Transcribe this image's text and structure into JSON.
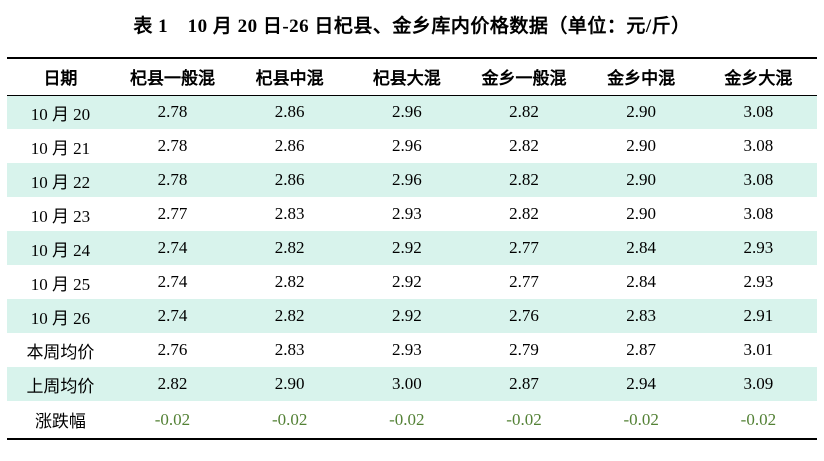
{
  "title": "表 1　10 月 20 日-26 日杞县、金乡库内价格数据（单位：元/斤）",
  "table": {
    "columns": [
      "日期",
      "杞县一般混",
      "杞县中混",
      "杞县大混",
      "金乡一般混",
      "金乡中混",
      "金乡大混"
    ],
    "rows": [
      {
        "label": "10 月 20",
        "values": [
          "2.78",
          "2.86",
          "2.96",
          "2.82",
          "2.90",
          "3.08"
        ],
        "is_change": false
      },
      {
        "label": "10 月 21",
        "values": [
          "2.78",
          "2.86",
          "2.96",
          "2.82",
          "2.90",
          "3.08"
        ],
        "is_change": false
      },
      {
        "label": "10 月 22",
        "values": [
          "2.78",
          "2.86",
          "2.96",
          "2.82",
          "2.90",
          "3.08"
        ],
        "is_change": false
      },
      {
        "label": "10 月 23",
        "values": [
          "2.77",
          "2.83",
          "2.93",
          "2.82",
          "2.90",
          "3.08"
        ],
        "is_change": false
      },
      {
        "label": "10 月 24",
        "values": [
          "2.74",
          "2.82",
          "2.92",
          "2.77",
          "2.84",
          "2.93"
        ],
        "is_change": false
      },
      {
        "label": "10 月 25",
        "values": [
          "2.74",
          "2.82",
          "2.92",
          "2.77",
          "2.84",
          "2.93"
        ],
        "is_change": false
      },
      {
        "label": "10 月 26",
        "values": [
          "2.74",
          "2.82",
          "2.92",
          "2.76",
          "2.83",
          "2.91"
        ],
        "is_change": false
      },
      {
        "label": "本周均价",
        "values": [
          "2.76",
          "2.83",
          "2.93",
          "2.79",
          "2.87",
          "3.01"
        ],
        "is_change": false
      },
      {
        "label": "上周均价",
        "values": [
          "2.82",
          "2.90",
          "3.00",
          "2.87",
          "2.94",
          "3.09"
        ],
        "is_change": false
      },
      {
        "label": "涨跌幅",
        "values": [
          "-0.02",
          "-0.02",
          "-0.02",
          "-0.02",
          "-0.02",
          "-0.02"
        ],
        "is_change": true
      }
    ]
  },
  "colors": {
    "stripe_row_bg": "#d8f3ec",
    "change_value_text": "#538135",
    "table_border": "#000000"
  }
}
